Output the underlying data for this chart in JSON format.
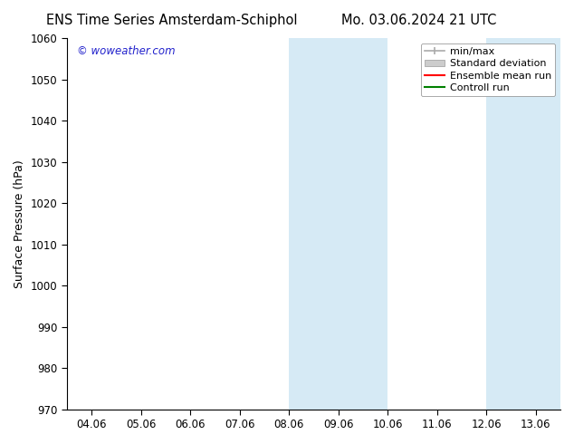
{
  "title_left": "ENS Time Series Amsterdam-Schiphol",
  "title_right": "Mo. 03.06.2024 21 UTC",
  "ylabel": "Surface Pressure (hPa)",
  "ylim": [
    970,
    1060
  ],
  "yticks": [
    970,
    980,
    990,
    1000,
    1010,
    1020,
    1030,
    1040,
    1050,
    1060
  ],
  "xlim_start": -0.5,
  "xlim_end": 9.5,
  "xtick_labels": [
    "04.06",
    "05.06",
    "06.06",
    "07.06",
    "08.06",
    "09.06",
    "10.06",
    "11.06",
    "12.06",
    "13.06"
  ],
  "xtick_positions": [
    0.0,
    1.0,
    2.0,
    3.0,
    4.0,
    5.0,
    6.0,
    7.0,
    8.0,
    9.0
  ],
  "shaded_bands": [
    {
      "x_start": 4.0,
      "x_end": 6.0
    },
    {
      "x_start": 8.0,
      "x_end": 9.5
    }
  ],
  "band_color": "#d6eaf5",
  "watermark": "© woweather.com",
  "watermark_color": "#2222cc",
  "background_color": "#ffffff",
  "legend_items": [
    {
      "label": "min/max",
      "color": "#aaaaaa",
      "style": "minmax"
    },
    {
      "label": "Standard deviation",
      "color": "#cccccc",
      "style": "band"
    },
    {
      "label": "Ensemble mean run",
      "color": "#ff0000",
      "style": "line"
    },
    {
      "label": "Controll run",
      "color": "#008000",
      "style": "line"
    }
  ],
  "title_fontsize": 10.5,
  "axis_label_fontsize": 9,
  "tick_fontsize": 8.5,
  "legend_fontsize": 8
}
